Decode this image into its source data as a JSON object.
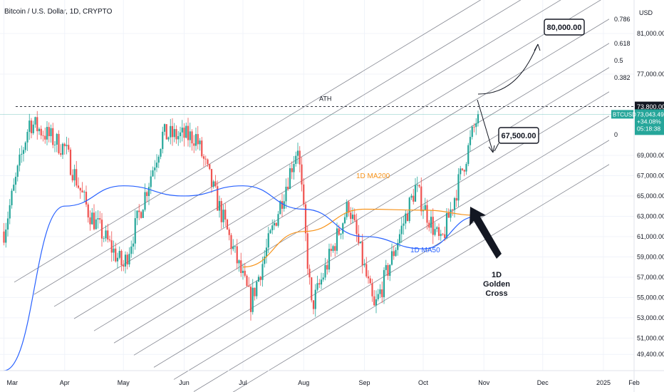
{
  "header": {
    "title": "Bitcoin / U.S. Dollar, 1D, CRYPTO"
  },
  "price_axis": {
    "currency": "USD",
    "ticks": [
      "81,000.00",
      "77,000.00",
      "73,800.00",
      "69,000.00",
      "67,000.00",
      "65,000.00",
      "63,000.00",
      "61,000.00",
      "59,000.00",
      "57,000.00",
      "55,000.00",
      "53,000.00",
      "51,000.00",
      "49,400.00"
    ]
  },
  "time_axis": {
    "ticks": [
      "Mar",
      "Apr",
      "May",
      "Jun",
      "Jul",
      "Aug",
      "Sep",
      "Oct",
      "Nov",
      "Dec",
      "2025"
    ],
    "end_tick": "Feb"
  },
  "current_price": {
    "symbol": "BTCUSD",
    "price": "73,043.49",
    "change": "+34.08%",
    "countdown": "05:18:38",
    "ath_label": "73,800.00"
  },
  "fib_labels": [
    "0.786",
    "0.618",
    "0.5",
    "0.382",
    "0"
  ],
  "annotations": {
    "ath": "ATH",
    "target_high": "80,000.00",
    "target_low": "67,500.00",
    "ma200": "1D MA200",
    "ma50": "1D MA50",
    "golden_cross": [
      "1D",
      "Golden",
      "Cross"
    ]
  },
  "colors": {
    "up": "#26a69a",
    "down": "#ef5350",
    "ma200": "#f7931a",
    "ma50": "#2962ff",
    "channel": "#787b86",
    "price_badge": "#26a69a",
    "ath_badge": "#131722"
  },
  "chart_data": {
    "type": "candlestick",
    "title": "Bitcoin / U.S. Dollar, 1D, CRYPTO",
    "ylim": [
      47800,
      84300
    ],
    "ath_level": 73800,
    "close_series_approx": {
      "x": [
        "Mar 1",
        "Mar 14",
        "Apr 1",
        "Apr 13",
        "May 1",
        "May 21",
        "Jun 7",
        "Jul 5",
        "Jul 29",
        "Aug 5",
        "Aug 24",
        "Sep 6",
        "Sep 27",
        "Oct 10",
        "Oct 29"
      ],
      "y": [
        61500,
        72300,
        69700,
        63500,
        58000,
        71000,
        70800,
        54500,
        70000,
        54000,
        64200,
        53800,
        65800,
        60200,
        73043
      ]
    },
    "ma200_approx": {
      "x": [
        "Jul 1",
        "Aug 1",
        "Sep 1",
        "Oct 1",
        "Oct 29"
      ],
      "y": [
        58000,
        61500,
        63700,
        63600,
        63100
      ]
    },
    "ma50_approx": {
      "x": [
        "Mar 1",
        "Apr 1",
        "May 1",
        "Jun 1",
        "Jul 1",
        "Aug 1",
        "Sep 1",
        "Oct 1",
        "Oct 29"
      ],
      "y": [
        47800,
        64000,
        66000,
        65000,
        66000,
        63700,
        61000,
        59800,
        63000
      ]
    },
    "projected_targets": [
      80000,
      67500
    ]
  }
}
